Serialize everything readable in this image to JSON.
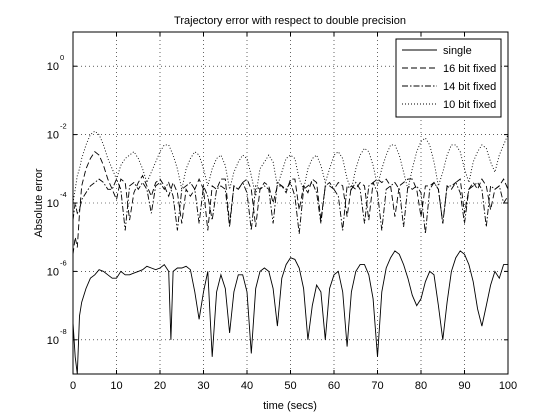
{
  "chart_data": {
    "type": "line",
    "title": "Trajectory error with respect to double precision",
    "xlabel": "time (secs)",
    "ylabel": "Absolute error",
    "xlim": [
      0,
      100
    ],
    "ylim_log10": [
      -9,
      1
    ],
    "yscale": "log",
    "grid": true,
    "grid_style": "dotted",
    "legend_position": "top-right",
    "x_ticks": [
      0,
      10,
      20,
      30,
      40,
      50,
      60,
      70,
      80,
      90,
      100
    ],
    "x_tick_labels": [
      "0",
      "10",
      "20",
      "30",
      "40",
      "50",
      "60",
      "70",
      "80",
      "90",
      "100"
    ],
    "y_ticks": [
      {
        "base": "10",
        "exp": "0",
        "log10": 0
      },
      {
        "base": "10",
        "exp": "-2",
        "log10": -2
      },
      {
        "base": "10",
        "exp": "-4",
        "log10": -4
      },
      {
        "base": "10",
        "exp": "-6",
        "log10": -6
      },
      {
        "base": "10",
        "exp": "-8",
        "log10": -8
      }
    ],
    "series": [
      {
        "name": "single",
        "style": "solid",
        "color": "#000000",
        "x": [
          0,
          0.5,
          1,
          1.5,
          2,
          3,
          4,
          5,
          6,
          7,
          8,
          9,
          10,
          11,
          12,
          13,
          14,
          15,
          16,
          17,
          18,
          19,
          20,
          21,
          22,
          22.5,
          23,
          24,
          25,
          26,
          27,
          28,
          29,
          30,
          31,
          32,
          33,
          34,
          35,
          36,
          37,
          38,
          39,
          40,
          41,
          42,
          43,
          44,
          45,
          46,
          47,
          48,
          49,
          50,
          51,
          52,
          53,
          54,
          55,
          56,
          57,
          58,
          59,
          60,
          61,
          62,
          63,
          64,
          65,
          66,
          67,
          68,
          69,
          70,
          71,
          72,
          73,
          74,
          75,
          76,
          77,
          78,
          79,
          80,
          81,
          82,
          83,
          84,
          85,
          86,
          87,
          88,
          89,
          90,
          91,
          92,
          93,
          94,
          95,
          96,
          97,
          98,
          99,
          100
        ],
        "y_log10": [
          -7.5,
          -8.5,
          -9.0,
          -7.3,
          -6.9,
          -6.5,
          -6.2,
          -6.1,
          -5.95,
          -6.0,
          -6.1,
          -6.2,
          -6.2,
          -6.0,
          -6.1,
          -6.1,
          -6.05,
          -6.0,
          -5.95,
          -5.85,
          -5.9,
          -5.95,
          -5.9,
          -5.8,
          -6.0,
          -8.0,
          -6.0,
          -5.9,
          -5.9,
          -5.85,
          -5.95,
          -6.6,
          -7.4,
          -6.6,
          -6.0,
          -8.5,
          -6.6,
          -6.1,
          -6.5,
          -7.8,
          -6.6,
          -6.1,
          -6.1,
          -6.6,
          -8.4,
          -6.5,
          -6.0,
          -5.9,
          -6.0,
          -6.5,
          -7.6,
          -6.2,
          -5.8,
          -5.6,
          -5.65,
          -5.9,
          -6.5,
          -8.0,
          -7.0,
          -6.4,
          -6.6,
          -8.0,
          -6.5,
          -6.1,
          -6.0,
          -6.6,
          -8.2,
          -6.6,
          -6.0,
          -5.8,
          -5.8,
          -6.1,
          -6.8,
          -8.5,
          -6.6,
          -5.9,
          -5.6,
          -5.4,
          -5.5,
          -5.8,
          -6.2,
          -6.7,
          -7.0,
          -6.8,
          -6.3,
          -6.0,
          -6.1,
          -7.0,
          -8.0,
          -6.9,
          -6.0,
          -5.6,
          -5.4,
          -5.5,
          -5.8,
          -6.3,
          -7.1,
          -7.6,
          -7.0,
          -6.4,
          -6.0,
          -6.2,
          -5.8,
          -5.8
        ]
      },
      {
        "name": "16 bit fixed",
        "style": "dashed",
        "color": "#000000",
        "x": [
          0,
          0.5,
          1,
          1.5,
          2,
          3,
          4,
          5,
          6,
          7,
          8,
          9,
          10,
          11,
          12,
          13,
          14,
          15,
          16,
          17,
          18,
          19,
          20,
          21,
          22,
          23,
          24,
          25,
          26,
          27,
          28,
          29,
          30,
          31,
          32,
          33,
          34,
          35,
          36,
          37,
          38,
          39,
          40,
          41,
          42,
          43,
          44,
          45,
          46,
          47,
          48,
          49,
          50,
          51,
          52,
          53,
          54,
          55,
          56,
          57,
          58,
          59,
          60,
          61,
          62,
          63,
          64,
          65,
          66,
          67,
          68,
          69,
          70,
          71,
          72,
          73,
          74,
          75,
          76,
          77,
          78,
          79,
          80,
          81,
          82,
          83,
          84,
          85,
          86,
          87,
          88,
          89,
          90,
          91,
          92,
          93,
          94,
          95,
          96,
          97,
          98,
          99,
          100
        ],
        "y_log10": [
          -5.5,
          -5.0,
          -5.3,
          -4.3,
          -3.5,
          -3.0,
          -2.7,
          -2.5,
          -2.6,
          -2.9,
          -3.3,
          -3.6,
          -3.9,
          -3.3,
          -3.4,
          -4.5,
          -3.7,
          -3.4,
          -3.2,
          -3.5,
          -3.8,
          -3.4,
          -3.3,
          -3.5,
          -3.8,
          -3.4,
          -3.7,
          -4.6,
          -3.6,
          -3.8,
          -3.6,
          -3.3,
          -3.6,
          -4.8,
          -3.5,
          -3.6,
          -3.3,
          -3.3,
          -4.6,
          -3.5,
          -3.6,
          -3.4,
          -3.3,
          -3.6,
          -4.7,
          -3.6,
          -3.4,
          -3.5,
          -4.0,
          -3.5,
          -3.5,
          -3.7,
          -3.3,
          -3.3,
          -4.2,
          -3.5,
          -3.7,
          -3.3,
          -3.4,
          -4.5,
          -3.5,
          -3.5,
          -3.6,
          -3.4,
          -3.5,
          -4.4,
          -3.5,
          -3.6,
          -3.4,
          -3.5,
          -4.5,
          -3.4,
          -3.3,
          -3.4,
          -3.3,
          -3.5,
          -4.4,
          -3.5,
          -3.4,
          -3.3,
          -3.3,
          -3.6,
          -4.4,
          -3.5,
          -3.5,
          -3.4,
          -3.6,
          -4.6,
          -3.5,
          -3.6,
          -3.4,
          -3.3,
          -4.3,
          -3.6,
          -3.4,
          -3.6,
          -3.3,
          -3.5,
          -4.2,
          -3.6,
          -3.5,
          -3.3,
          -3.6
        ]
      },
      {
        "name": "14 bit fixed",
        "style": "dashdot",
        "color": "#000000",
        "x": [
          0,
          0.5,
          1,
          1.5,
          2,
          3,
          4,
          5,
          6,
          7,
          8,
          9,
          10,
          11,
          12,
          13,
          14,
          15,
          16,
          17,
          18,
          19,
          20,
          21,
          22,
          23,
          24,
          25,
          26,
          27,
          28,
          29,
          30,
          31,
          32,
          33,
          34,
          35,
          36,
          37,
          38,
          39,
          40,
          41,
          42,
          43,
          44,
          45,
          46,
          47,
          48,
          49,
          50,
          51,
          52,
          53,
          54,
          55,
          56,
          57,
          58,
          59,
          60,
          61,
          62,
          63,
          64,
          65,
          66,
          67,
          68,
          69,
          70,
          71,
          72,
          73,
          74,
          75,
          76,
          77,
          78,
          79,
          80,
          81,
          82,
          83,
          84,
          85,
          86,
          87,
          88,
          89,
          90,
          91,
          92,
          93,
          94,
          95,
          96,
          97,
          98,
          99,
          100
        ],
        "y_log10": [
          -4.5,
          -4.0,
          -4.3,
          -4.2,
          -3.9,
          -3.7,
          -3.5,
          -3.4,
          -3.3,
          -3.4,
          -3.6,
          -3.6,
          -3.3,
          -3.6,
          -4.8,
          -3.5,
          -3.4,
          -3.6,
          -3.4,
          -3.6,
          -4.3,
          -3.5,
          -3.4,
          -3.6,
          -3.4,
          -3.8,
          -4.8,
          -3.6,
          -3.5,
          -3.4,
          -3.6,
          -4.6,
          -3.5,
          -3.8,
          -4.5,
          -3.6,
          -3.5,
          -3.6,
          -4.7,
          -3.5,
          -3.6,
          -3.4,
          -3.7,
          -4.8,
          -3.5,
          -3.6,
          -3.5,
          -3.6,
          -4.6,
          -3.4,
          -3.5,
          -3.6,
          -3.4,
          -3.8,
          -4.9,
          -3.6,
          -3.5,
          -3.4,
          -3.7,
          -4.6,
          -3.5,
          -3.4,
          -3.6,
          -3.8,
          -4.8,
          -3.5,
          -3.6,
          -3.4,
          -3.6,
          -4.6,
          -3.5,
          -3.4,
          -3.7,
          -4.8,
          -3.6,
          -3.5,
          -3.4,
          -3.6,
          -4.7,
          -3.5,
          -3.6,
          -3.5,
          -3.7,
          -4.9,
          -3.6,
          -3.4,
          -3.6,
          -4.6,
          -3.5,
          -3.5,
          -3.4,
          -3.7,
          -4.6,
          -3.6,
          -3.5,
          -3.4,
          -3.6,
          -4.7,
          -3.5,
          -3.6,
          -3.5,
          -4.0,
          -3.8
        ]
      },
      {
        "name": "10 bit fixed",
        "style": "dotted",
        "color": "#000000",
        "x": [
          0,
          0.5,
          1,
          1.5,
          2,
          3,
          4,
          5,
          6,
          7,
          8,
          9,
          10,
          11,
          12,
          13,
          14,
          15,
          16,
          17,
          18,
          19,
          20,
          21,
          22,
          23,
          24,
          25,
          26,
          27,
          28,
          29,
          30,
          31,
          32,
          33,
          34,
          35,
          36,
          37,
          38,
          39,
          40,
          41,
          42,
          43,
          44,
          45,
          46,
          47,
          48,
          49,
          50,
          51,
          52,
          53,
          54,
          55,
          56,
          57,
          58,
          59,
          60,
          61,
          62,
          63,
          64,
          65,
          66,
          67,
          68,
          69,
          70,
          71,
          72,
          73,
          74,
          75,
          76,
          77,
          78,
          79,
          80,
          81,
          82,
          83,
          84,
          85,
          86,
          87,
          88,
          89,
          90,
          91,
          92,
          93,
          94,
          95,
          96,
          97,
          98,
          99,
          100
        ],
        "y_log10": [
          -4.0,
          -3.6,
          -3.2,
          -3.0,
          -2.7,
          -2.3,
          -2.0,
          -1.9,
          -2.0,
          -2.3,
          -2.7,
          -3.0,
          -3.3,
          -2.9,
          -2.7,
          -2.6,
          -2.5,
          -2.7,
          -3.0,
          -3.4,
          -3.1,
          -2.8,
          -2.5,
          -2.3,
          -2.3,
          -2.6,
          -3.0,
          -3.6,
          -3.0,
          -2.7,
          -2.5,
          -2.6,
          -3.0,
          -3.5,
          -3.0,
          -2.7,
          -2.6,
          -2.9,
          -3.6,
          -3.1,
          -2.8,
          -2.6,
          -2.7,
          -3.2,
          -3.8,
          -3.0,
          -2.8,
          -2.6,
          -2.8,
          -3.5,
          -3.1,
          -2.7,
          -2.6,
          -2.7,
          -3.3,
          -3.6,
          -3.0,
          -2.7,
          -2.6,
          -2.9,
          -3.4,
          -3.0,
          -2.6,
          -2.5,
          -2.7,
          -3.3,
          -3.6,
          -3.0,
          -2.6,
          -2.4,
          -2.5,
          -2.9,
          -3.5,
          -3.0,
          -2.6,
          -2.3,
          -2.3,
          -2.6,
          -3.1,
          -3.6,
          -3.0,
          -2.5,
          -2.2,
          -2.1,
          -2.3,
          -2.8,
          -3.5,
          -3.1,
          -2.6,
          -2.3,
          -2.3,
          -2.5,
          -3.0,
          -3.4,
          -2.8,
          -2.5,
          -2.3,
          -2.4,
          -2.8,
          -3.1,
          -2.6,
          -2.3,
          -2.0
        ]
      }
    ]
  }
}
